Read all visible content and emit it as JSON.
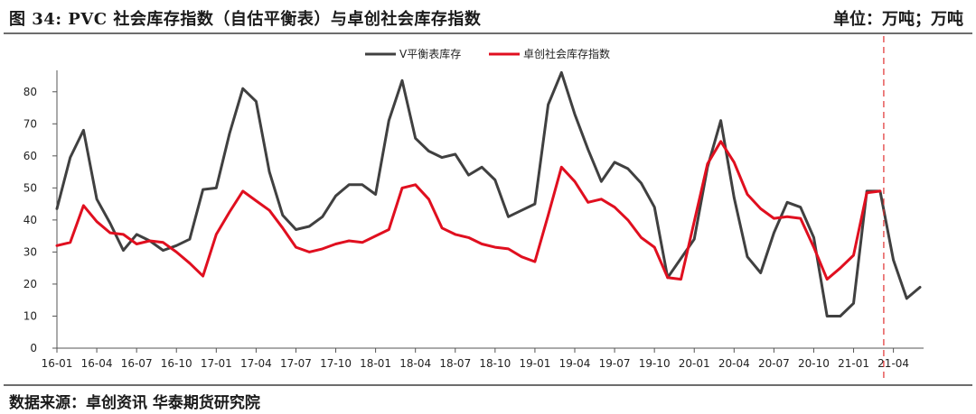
{
  "header": {
    "title": "图 34:    PVC 社会库存指数（自估平衡表）与卓创社会库存指数",
    "unit": "单位：万吨；万吨"
  },
  "footer": {
    "source": "数据来源：卓创资讯  华泰期货研究院"
  },
  "colors": {
    "series1": "#404040",
    "series2": "#e00f1f",
    "divider": "#e03030",
    "axis": "#555555"
  },
  "chart_data": {
    "type": "line",
    "ylim": [
      0,
      85
    ],
    "yticks": [
      0,
      10,
      20,
      30,
      40,
      50,
      60,
      70,
      80
    ],
    "x_tick_labels": [
      "16-01",
      "16-04",
      "16-07",
      "16-10",
      "17-01",
      "17-04",
      "17-07",
      "17-10",
      "18-01",
      "18-04",
      "18-07",
      "18-10",
      "19-01",
      "19-04",
      "19-07",
      "19-10",
      "20-01",
      "20-04",
      "20-07",
      "20-10",
      "21-01",
      "21-04"
    ],
    "x_tick_index": [
      0,
      3,
      6,
      9,
      12,
      15,
      18,
      21,
      24,
      27,
      30,
      33,
      36,
      39,
      42,
      45,
      48,
      51,
      54,
      57,
      60,
      63
    ],
    "legend_position": "top-center",
    "divider_after_index": 62,
    "series": [
      {
        "name": "V平衡表库存",
        "color": "#404040",
        "values": [
          43.5,
          59.5,
          68,
          46.5,
          39,
          30.5,
          35.5,
          33.5,
          30.5,
          32,
          34,
          49.5,
          50,
          67,
          81,
          77,
          55,
          41.5,
          37,
          38,
          41,
          47.5,
          51,
          51,
          48,
          71,
          83.5,
          65.5,
          61.5,
          59.5,
          60.5,
          54,
          56.5,
          52.5,
          41,
          43,
          45,
          76,
          86,
          73,
          62,
          52,
          58,
          56,
          51.5,
          44,
          22,
          28,
          34,
          56.5,
          71,
          47,
          28.5,
          23.5,
          36,
          45.5,
          44,
          34.5,
          10,
          10,
          14,
          49,
          49,
          27.5,
          15.5,
          19
        ]
      },
      {
        "name": "卓创社会库存指数",
        "color": "#e00f1f",
        "values": [
          32,
          33,
          44.5,
          39.5,
          36,
          35.5,
          32.5,
          33.5,
          33,
          30,
          26.5,
          22.5,
          35.5,
          42.5,
          49,
          46,
          43,
          37.5,
          31.5,
          30,
          31,
          32.5,
          33.5,
          33,
          35,
          37,
          50,
          51,
          46.5,
          37.5,
          35.5,
          34.5,
          32.5,
          31.5,
          31,
          28.5,
          27,
          41.5,
          56.5,
          52,
          45.5,
          46.5,
          44,
          40,
          34.5,
          31.5,
          22,
          21.5,
          39.5,
          57.5,
          64.5,
          58,
          48,
          43.5,
          40.5,
          41,
          40.5,
          31.5,
          21.5,
          25,
          29,
          48.5,
          49
        ]
      }
    ]
  }
}
